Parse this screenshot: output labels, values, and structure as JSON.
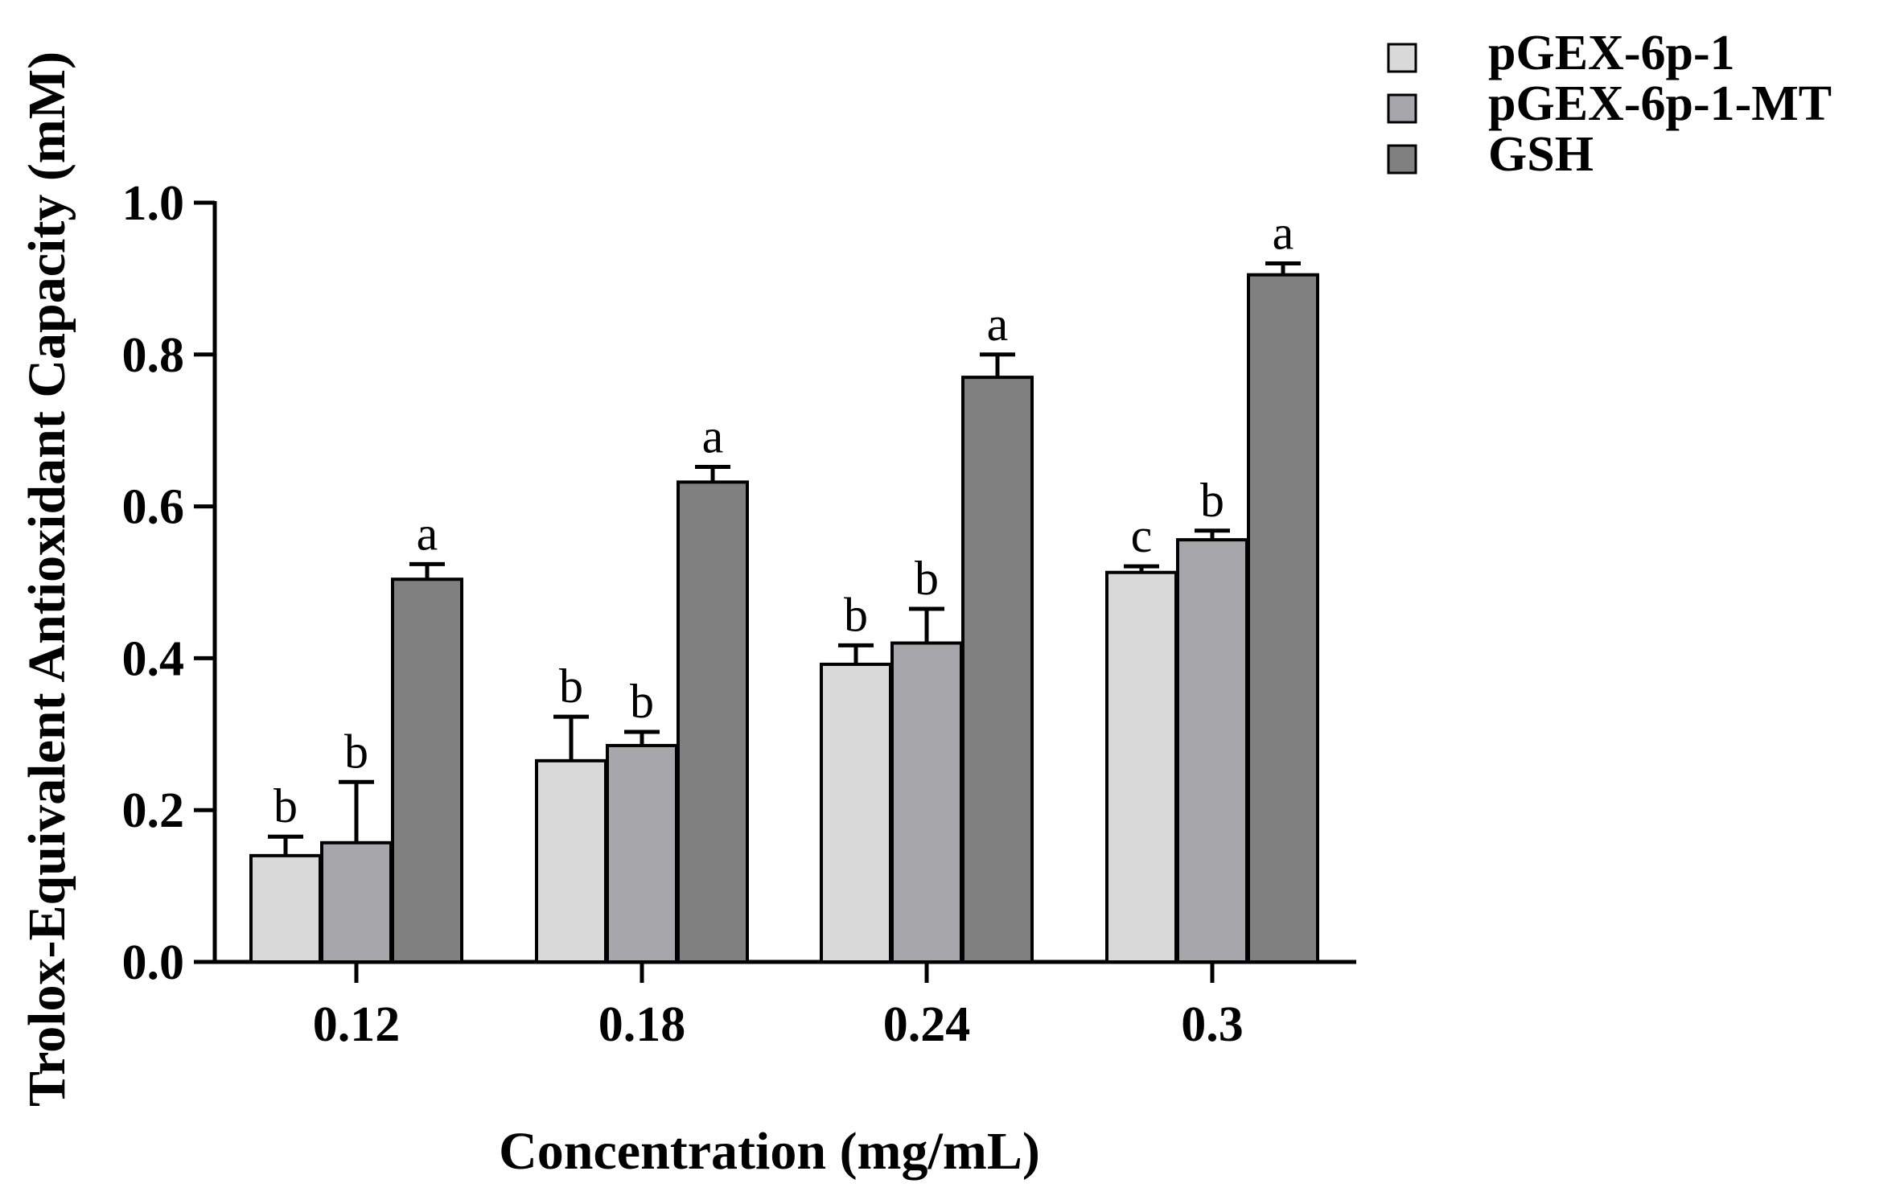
{
  "chart_data": {
    "type": "bar",
    "title": "",
    "xlabel": "Concentration (mg/mL)",
    "ylabel": "Trolox-Equivalent Antioxidant Capacity (mM)",
    "categories": [
      "0.12",
      "0.18",
      "0.24",
      "0.3"
    ],
    "ylim": [
      0,
      1.0
    ],
    "yticks": [
      "0.0",
      "0.2",
      "0.4",
      "0.6",
      "0.8",
      "1.0"
    ],
    "ytick_values": [
      0,
      0.2,
      0.4,
      0.6,
      0.8,
      1.0
    ],
    "grid": false,
    "legend_position": "top-right",
    "series": [
      {
        "name": "pGEX-6p-1",
        "color": "#d9d9d9",
        "values": [
          0.14,
          0.265,
          0.392,
          0.513
        ],
        "errors": [
          0.025,
          0.058,
          0.025,
          0.008
        ],
        "labels": [
          "b",
          "b",
          "b",
          "c"
        ]
      },
      {
        "name": "pGEX-6p-1-MT",
        "color": "#a6a6ab",
        "values": [
          0.157,
          0.285,
          0.42,
          0.556
        ],
        "errors": [
          0.08,
          0.018,
          0.045,
          0.012
        ],
        "labels": [
          "b",
          "b",
          "b",
          "b"
        ]
      },
      {
        "name": "GSH",
        "color": "#808080",
        "values": [
          0.504,
          0.632,
          0.77,
          0.905
        ],
        "errors": [
          0.02,
          0.02,
          0.03,
          0.015
        ],
        "labels": [
          "a",
          "a",
          "a",
          "a"
        ]
      }
    ]
  }
}
